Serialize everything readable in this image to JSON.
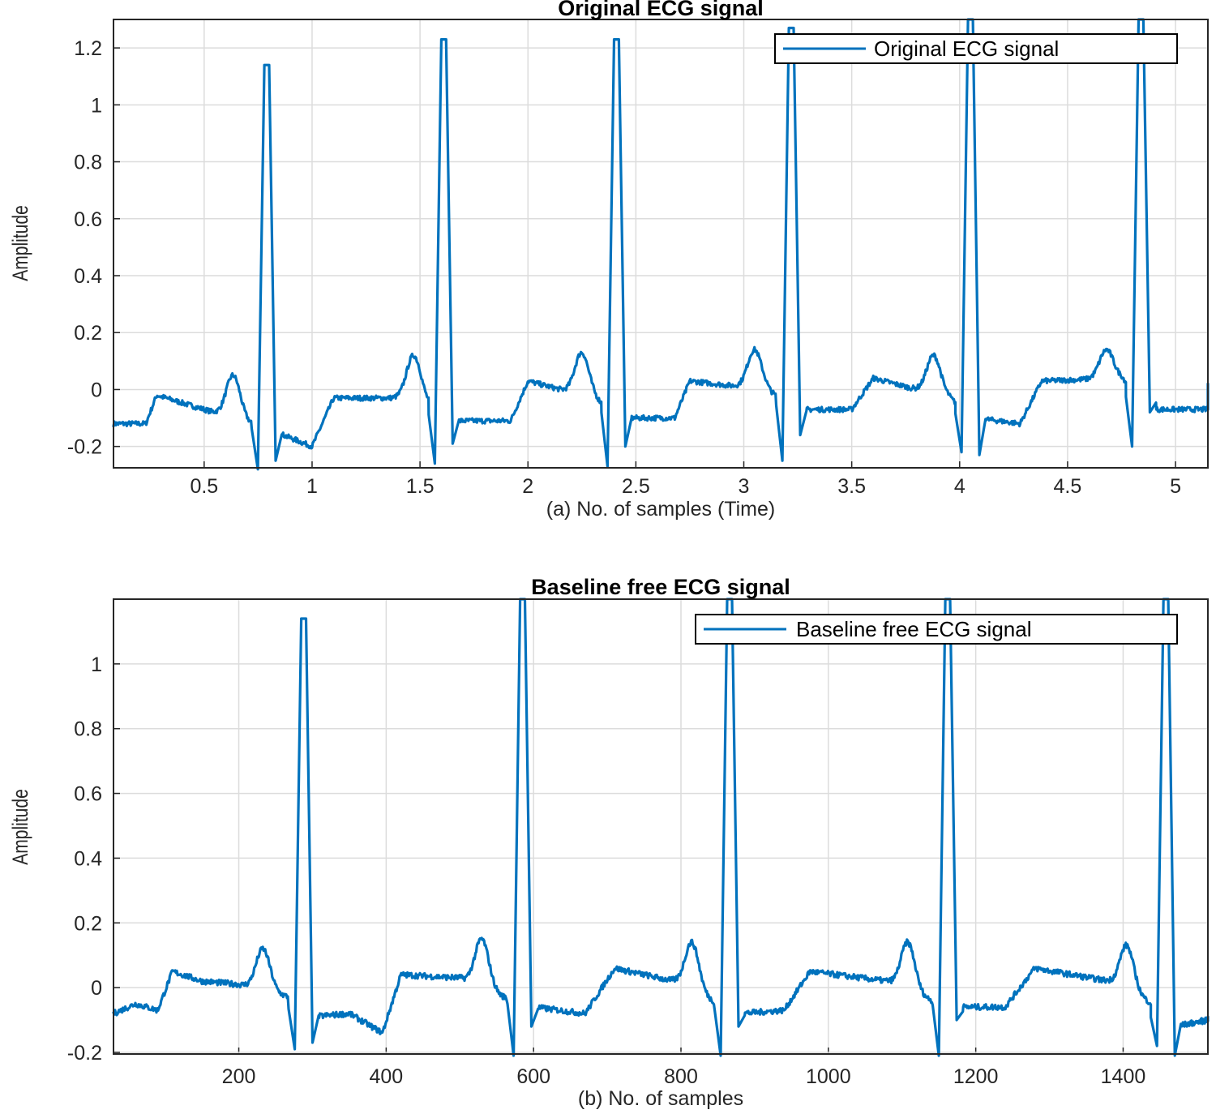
{
  "colors": {
    "series": "#0072BD",
    "grid": "#dcdcdc",
    "axis": "#262626"
  },
  "chart_data": [
    {
      "type": "line",
      "title": "Original ECG signal",
      "xlabel": "(a) No. of samples (Time)",
      "ylabel": "Amplitude",
      "xlim": [
        0.08,
        5.15
      ],
      "ylim": [
        -0.275,
        1.3
      ],
      "xticks": [
        0.5,
        1,
        1.5,
        2,
        2.5,
        3,
        3.5,
        4,
        4.5,
        5
      ],
      "xtick_labels": [
        "0.5",
        "1",
        "1.5",
        "2",
        "2.5",
        "3",
        "3.5",
        "4",
        "4.5",
        "5"
      ],
      "yticks": [
        -0.2,
        0,
        0.2,
        0.4,
        0.6,
        0.8,
        1,
        1.2
      ],
      "ytick_labels": [
        "-0.2",
        "0",
        "0.2",
        "0.4",
        "0.6",
        "0.8",
        "1",
        "1.2"
      ],
      "grid": true,
      "legend": {
        "position": "top-right",
        "entries": [
          "Original ECG signal"
        ]
      },
      "series": [
        {
          "name": "Original ECG signal",
          "baseline": [
            [
              0.08,
              -0.12
            ],
            [
              0.23,
              -0.12
            ],
            [
              0.28,
              -0.02
            ],
            [
              0.5,
              -0.07
            ],
            [
              0.8,
              -0.14
            ],
            [
              1.0,
              -0.2
            ],
            [
              1.1,
              -0.03
            ],
            [
              1.5,
              -0.03
            ],
            [
              1.65,
              -0.11
            ],
            [
              1.92,
              -0.11
            ],
            [
              2.0,
              0.03
            ],
            [
              2.3,
              -0.03
            ],
            [
              2.45,
              -0.1
            ],
            [
              2.68,
              -0.1
            ],
            [
              2.75,
              0.03
            ],
            [
              3.1,
              0.0
            ],
            [
              3.25,
              -0.07
            ],
            [
              3.5,
              -0.07
            ],
            [
              3.6,
              0.04
            ],
            [
              3.95,
              -0.03
            ],
            [
              4.08,
              -0.1
            ],
            [
              4.28,
              -0.12
            ],
            [
              4.38,
              0.03
            ],
            [
              4.75,
              0.04
            ],
            [
              4.9,
              -0.07
            ],
            [
              5.15,
              -0.07
            ]
          ],
          "beats": [
            {
              "r": 0.79,
              "peak": 1.14,
              "q": -0.28,
              "s": -0.25,
              "t": 0.05,
              "t_center": 0.635
            },
            {
              "r": 1.61,
              "peak": 1.23,
              "q": -0.26,
              "s": -0.19,
              "t": 0.12,
              "t_center": 1.47
            },
            {
              "r": 2.41,
              "peak": 1.23,
              "q": -0.27,
              "s": -0.2,
              "t": 0.13,
              "t_center": 2.25
            },
            {
              "r": 3.22,
              "peak": 1.27,
              "q": -0.25,
              "s": -0.16,
              "t": 0.14,
              "t_center": 3.05
            },
            {
              "r": 4.05,
              "peak": 1.3,
              "q": -0.22,
              "s": -0.23,
              "t": 0.12,
              "t_center": 3.88
            },
            {
              "r": 4.84,
              "peak": 1.3,
              "q": -0.2,
              "s": -0.08,
              "t": 0.14,
              "t_center": 4.68
            }
          ],
          "end_value": 0.02
        }
      ]
    },
    {
      "type": "line",
      "title": "Baseline free ECG signal",
      "xlabel": "(b) No. of samples",
      "ylabel": "Amplitude",
      "xlim": [
        30,
        1515
      ],
      "ylim": [
        -0.205,
        1.2
      ],
      "xticks": [
        200,
        400,
        600,
        800,
        1000,
        1200,
        1400
      ],
      "xtick_labels": [
        "200",
        "400",
        "600",
        "800",
        "1000",
        "1200",
        "1400"
      ],
      "yticks": [
        -0.2,
        0,
        0.2,
        0.4,
        0.6,
        0.8,
        1
      ],
      "ytick_labels": [
        "-0.2",
        "0",
        "0.2",
        "0.4",
        "0.6",
        "0.8",
        "1"
      ],
      "grid": true,
      "legend": {
        "position": "top-right",
        "entries": [
          "Baseline free ECG signal"
        ]
      },
      "series": [
        {
          "name": "Baseline free ECG signal",
          "baseline": [
            [
              30,
              -0.08
            ],
            [
              60,
              -0.05
            ],
            [
              90,
              -0.07
            ],
            [
              110,
              0.05
            ],
            [
              150,
              0.02
            ],
            [
              200,
              0.01
            ],
            [
              270,
              -0.03
            ],
            [
              300,
              -0.09
            ],
            [
              350,
              -0.08
            ],
            [
              395,
              -0.14
            ],
            [
              420,
              0.04
            ],
            [
              500,
              0.03
            ],
            [
              570,
              -0.04
            ],
            [
              600,
              -0.06
            ],
            [
              670,
              -0.08
            ],
            [
              710,
              0.06
            ],
            [
              790,
              0.02
            ],
            [
              850,
              -0.05
            ],
            [
              880,
              -0.08
            ],
            [
              940,
              -0.07
            ],
            [
              975,
              0.05
            ],
            [
              1080,
              0.02
            ],
            [
              1150,
              -0.05
            ],
            [
              1180,
              -0.06
            ],
            [
              1240,
              -0.06
            ],
            [
              1280,
              0.06
            ],
            [
              1380,
              0.02
            ],
            [
              1440,
              -0.05
            ],
            [
              1470,
              -0.12
            ],
            [
              1515,
              -0.1
            ]
          ],
          "beats": [
            {
              "r": 288,
              "peak": 1.14,
              "q": -0.19,
              "s": -0.17,
              "t": 0.12,
              "t_center": 233
            },
            {
              "r": 585,
              "peak": 1.2,
              "q": -0.21,
              "s": -0.12,
              "t": 0.15,
              "t_center": 530
            },
            {
              "r": 866,
              "peak": 1.2,
              "q": -0.21,
              "s": -0.12,
              "t": 0.14,
              "t_center": 815
            },
            {
              "r": 1162,
              "peak": 1.2,
              "q": -0.21,
              "s": -0.1,
              "t": 0.14,
              "t_center": 1108
            },
            {
              "r": 1458,
              "peak": 1.2,
              "q": -0.18,
              "s": -0.21,
              "t": 0.13,
              "t_center": 1405
            }
          ],
          "end_value": -0.09
        }
      ]
    }
  ]
}
